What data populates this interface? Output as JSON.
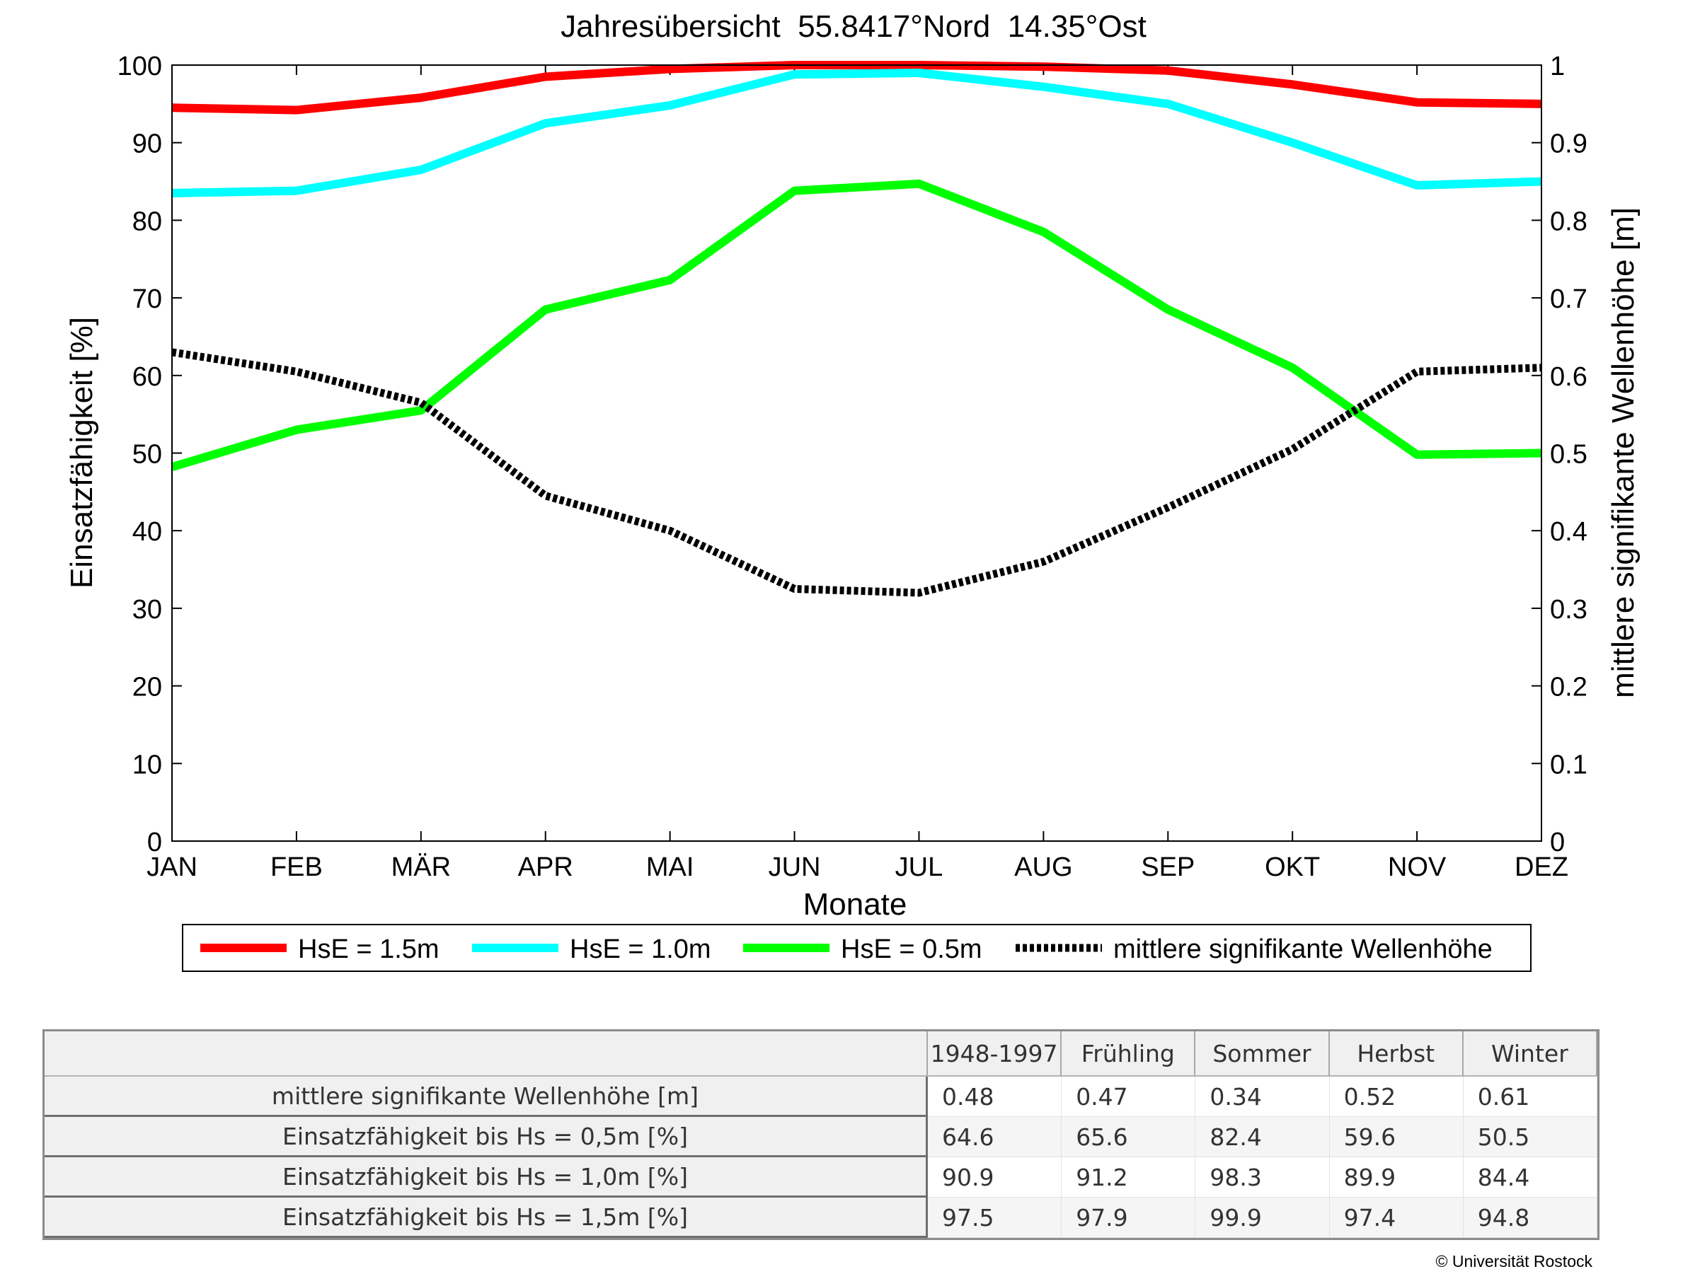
{
  "chart_data": {
    "type": "line",
    "title": "Jahresübersicht  55.8417°Nord  14.35°Ost",
    "xlabel": "Monate",
    "ylabel": "Einsatzfähigkeit [%]",
    "y2label": "mittlere signifikante Wellenhöhe [m]",
    "categories": [
      "JAN",
      "FEB",
      "MÄR",
      "APR",
      "MAI",
      "JUN",
      "JUL",
      "AUG",
      "SEP",
      "OKT",
      "NOV",
      "DEZ"
    ],
    "ylim": [
      0,
      100
    ],
    "y2lim": [
      0,
      1
    ],
    "yticks": [
      "0",
      "10",
      "20",
      "30",
      "40",
      "50",
      "60",
      "70",
      "80",
      "90",
      "100"
    ],
    "y2ticks": [
      "0",
      "0.1",
      "0.2",
      "0.3",
      "0.4",
      "0.5",
      "0.6",
      "0.7",
      "0.8",
      "0.9",
      "1"
    ],
    "grid": false,
    "legend_position": "bottom",
    "series": [
      {
        "name": "HsE = 1.5m",
        "axis": "left",
        "color": "#ff0000",
        "style": "solid",
        "values": [
          94.5,
          94.2,
          95.8,
          98.5,
          99.5,
          100,
          100,
          99.8,
          99.3,
          97.5,
          95.2,
          95.0
        ]
      },
      {
        "name": "HsE = 1.0m",
        "axis": "left",
        "color": "#00ffff",
        "style": "solid",
        "values": [
          83.5,
          83.8,
          86.5,
          92.5,
          94.8,
          98.8,
          99.0,
          97.2,
          95.0,
          90.0,
          84.5,
          85.0
        ]
      },
      {
        "name": "HsE = 0.5m",
        "axis": "left",
        "color": "#00ff00",
        "style": "solid",
        "values": [
          48.2,
          53.0,
          55.5,
          68.5,
          72.3,
          83.8,
          84.7,
          78.5,
          68.5,
          61.0,
          49.8,
          50.0
        ]
      },
      {
        "name": "mittlere signifikante Wellenhöhe",
        "axis": "right",
        "color": "#000000",
        "style": "dotted",
        "values": [
          0.63,
          0.605,
          0.565,
          0.445,
          0.4,
          0.325,
          0.32,
          0.36,
          0.43,
          0.505,
          0.605,
          0.61
        ]
      }
    ]
  },
  "table": {
    "columns": [
      "1948-1997",
      "Frühling",
      "Sommer",
      "Herbst",
      "Winter"
    ],
    "rows": [
      {
        "label": "mittlere signifikante Wellenhöhe [m]",
        "values": [
          "0.48",
          "0.47",
          "0.34",
          "0.52",
          "0.61"
        ]
      },
      {
        "label": "Einsatzfähigkeit bis Hs = 0,5m [%]",
        "values": [
          "64.6",
          "65.6",
          "82.4",
          "59.6",
          "50.5"
        ]
      },
      {
        "label": "Einsatzfähigkeit bis Hs = 1,0m [%]",
        "values": [
          "90.9",
          "91.2",
          "98.3",
          "89.9",
          "84.4"
        ]
      },
      {
        "label": "Einsatzfähigkeit bis Hs = 1,5m [%]",
        "values": [
          "97.5",
          "97.9",
          "99.9",
          "97.4",
          "94.8"
        ]
      }
    ]
  },
  "footer": {
    "copyright": "© Universität Rostock"
  }
}
